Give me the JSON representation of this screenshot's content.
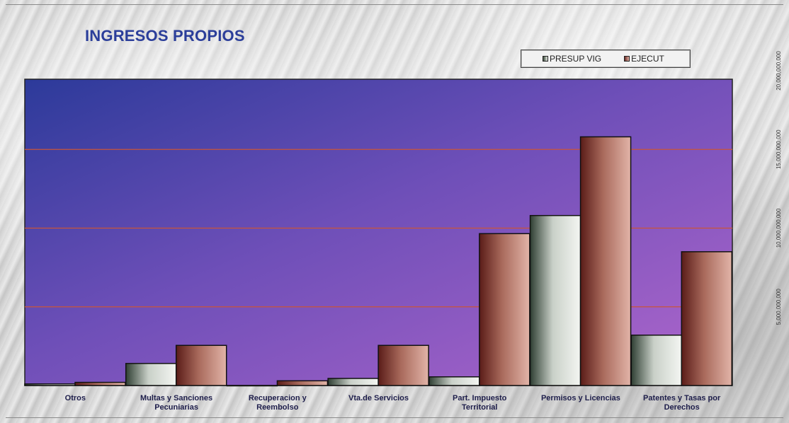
{
  "title": "INGRESOS PROPIOS",
  "legend": {
    "series1": "PRESUP VIG",
    "series2": "EJECUT"
  },
  "colors": {
    "title": "#2b3e9a",
    "plot_top": "#2c3a9a",
    "plot_bottom": "#a45ecb",
    "gridline": "#c8553a",
    "presup": "#dfe3dc",
    "ejecut": "#b87a6a"
  },
  "chart_data": {
    "type": "bar",
    "title": "INGRESOS PROPIOS",
    "categories": [
      [
        "Otros"
      ],
      [
        "Multas y Sanciones",
        "Pecuniarias"
      ],
      [
        "Recuperacion y",
        "Reembolso"
      ],
      [
        "Vta.de Servicios"
      ],
      [
        "Part. Impuesto",
        "Territorial"
      ],
      [
        "Permisos y Licencias"
      ],
      [
        "Patentes y Tasas por",
        "Derechos"
      ]
    ],
    "series": [
      {
        "name": "PRESUP VIG",
        "values": [
          100000000,
          1400000000,
          0,
          450000000,
          550000000,
          10800000000,
          3200000000
        ]
      },
      {
        "name": "EJECUT",
        "values": [
          200000000,
          2550000000,
          300000000,
          2550000000,
          9650000000,
          15800000000,
          8500000000
        ]
      }
    ],
    "yticks": [
      "5,000,000,000",
      "10,000,000,000",
      "15,000,000,000",
      "20,000,000,000"
    ],
    "ytick_values": [
      5000000000,
      10000000000,
      15000000000,
      20000000000
    ],
    "ylim": [
      0,
      20000000000
    ],
    "grid": true,
    "legend_position": "top-right"
  }
}
